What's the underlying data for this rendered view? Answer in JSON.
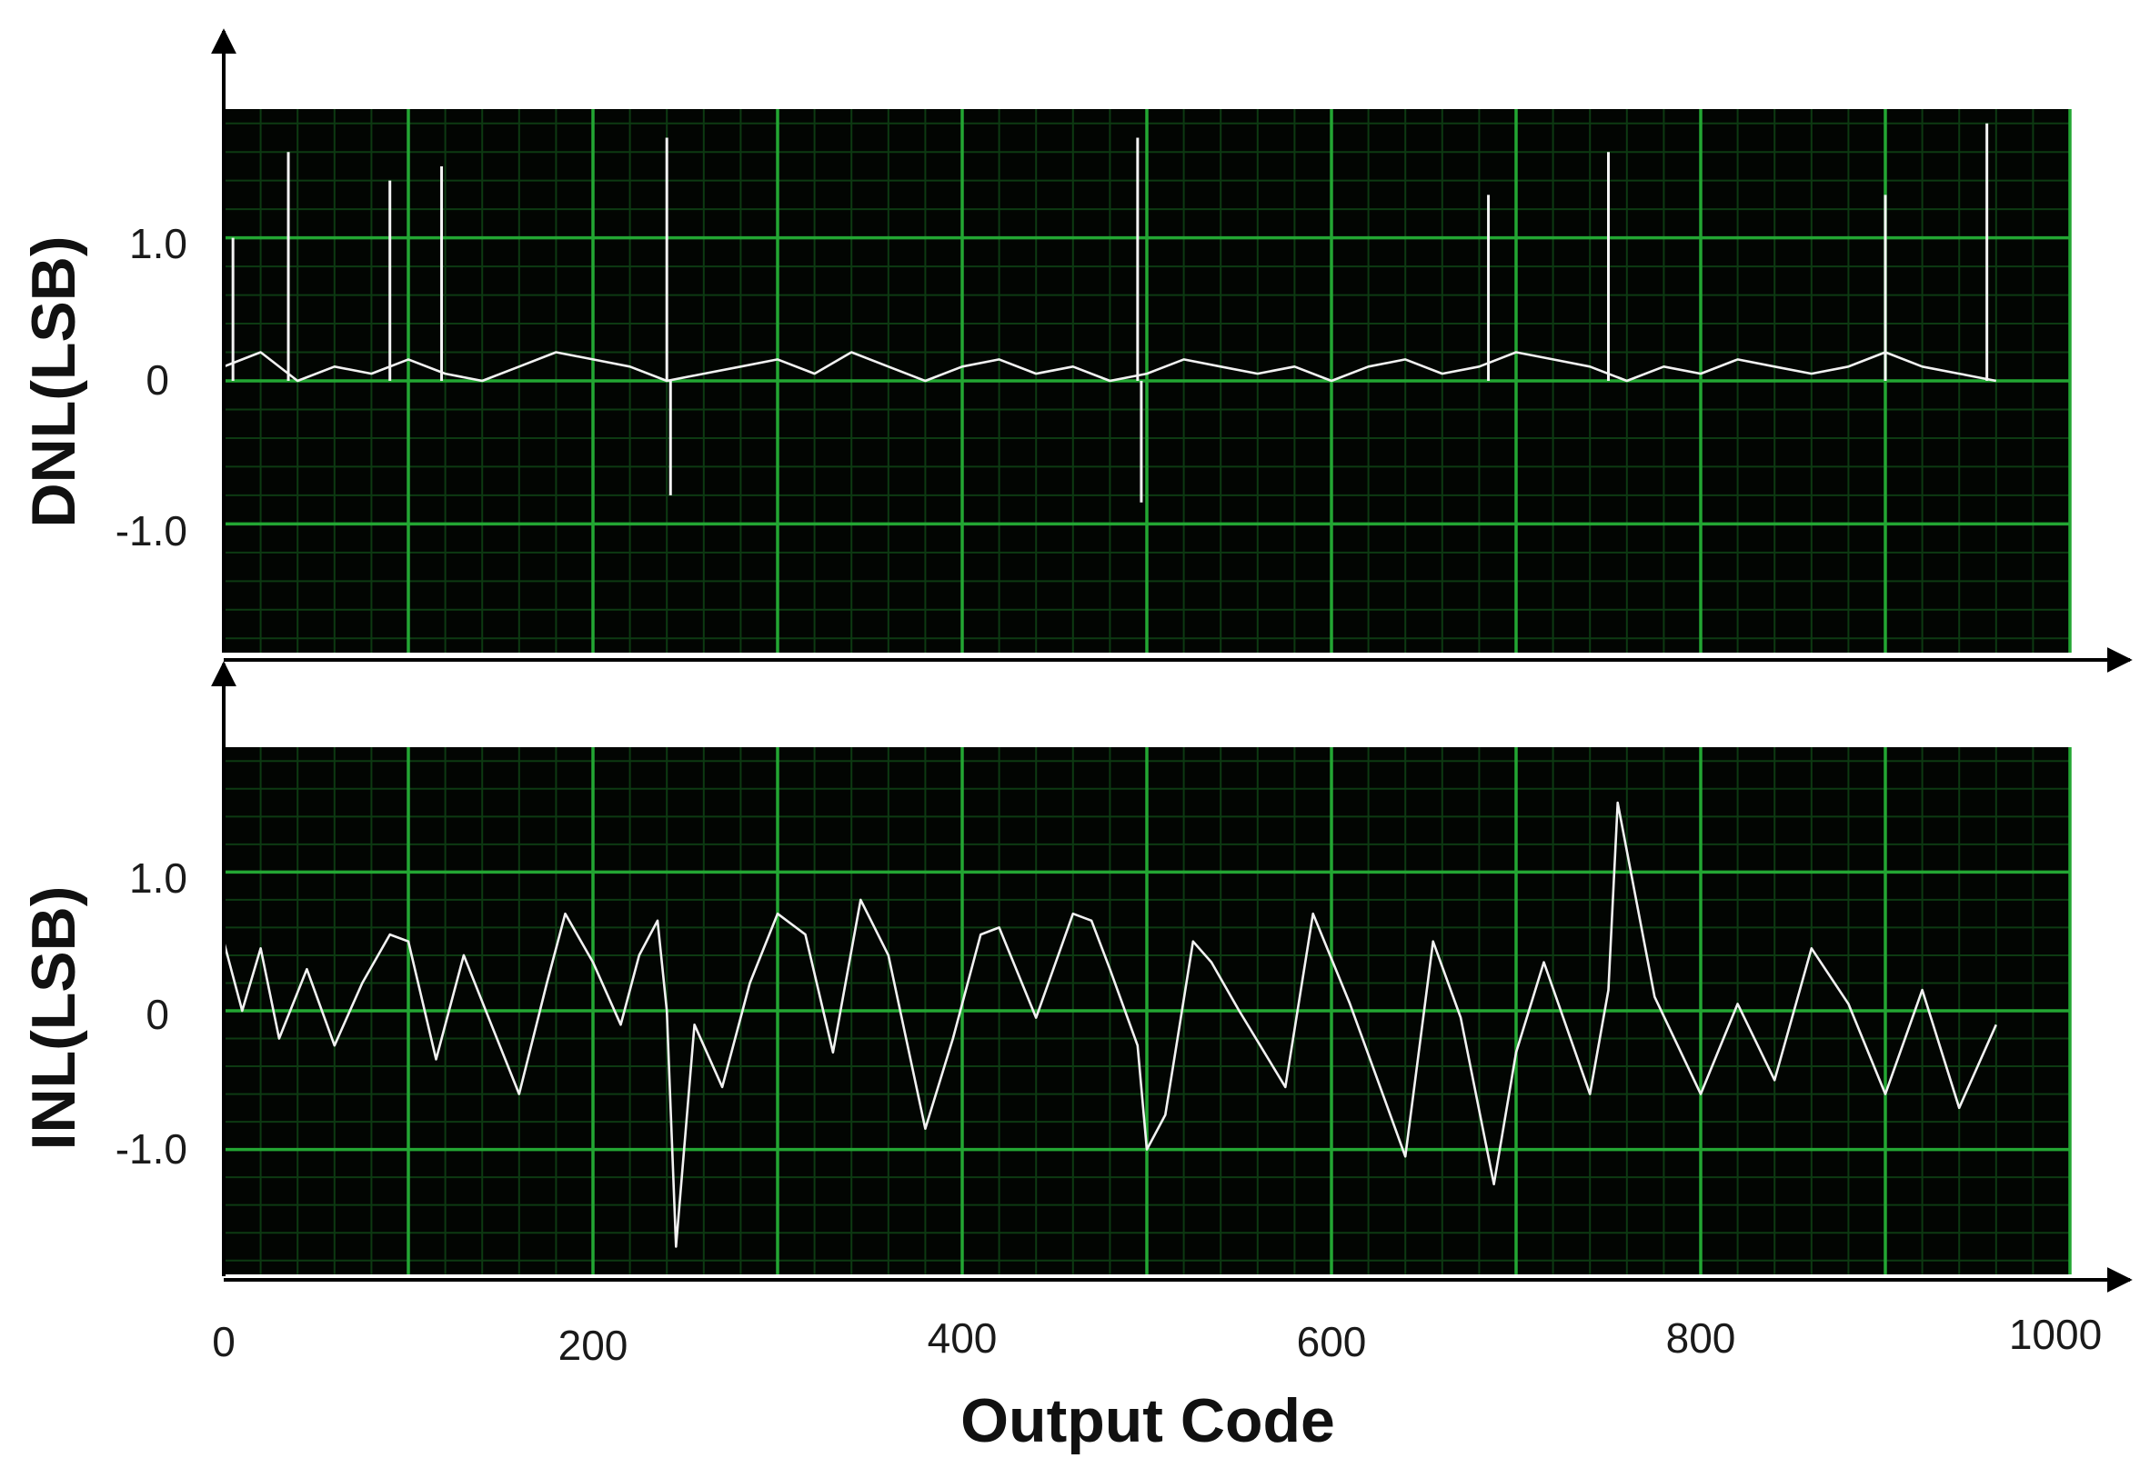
{
  "chart_data": [
    {
      "type": "line",
      "ylabel": "DNL(LSB)",
      "xlabel": "",
      "xlim": [
        0,
        1000
      ],
      "ylim": [
        -1.9,
        1.9
      ],
      "yticks": [
        -1.0,
        0,
        1.0
      ],
      "ytick_labels": [
        "-1.0",
        "0",
        "1.0"
      ],
      "grid": true,
      "colors": {
        "background": "#020502",
        "grid": "#23a633",
        "trace": "#f2f2f2"
      },
      "series": [
        {
          "x": [
            0,
            20,
            40,
            60,
            80,
            100,
            120,
            140,
            160,
            180,
            200,
            220,
            240,
            260,
            280,
            300,
            320,
            340,
            360,
            380,
            400,
            420,
            440,
            460,
            480,
            500,
            520,
            540,
            560,
            580,
            600,
            620,
            640,
            660,
            680,
            700,
            720,
            740,
            760,
            780,
            800,
            820,
            840,
            860,
            880,
            900,
            920,
            940,
            960
          ],
          "y": [
            0.1,
            0.2,
            0.0,
            0.1,
            0.05,
            0.15,
            0.05,
            0.0,
            0.1,
            0.2,
            0.15,
            0.1,
            0.0,
            0.05,
            0.1,
            0.15,
            0.05,
            0.2,
            0.1,
            0.0,
            0.1,
            0.15,
            0.05,
            0.1,
            0.0,
            0.05,
            0.15,
            0.1,
            0.05,
            0.1,
            0.0,
            0.1,
            0.15,
            0.05,
            0.1,
            0.2,
            0.15,
            0.1,
            0.0,
            0.1,
            0.05,
            0.15,
            0.1,
            0.05,
            0.1,
            0.2,
            0.1,
            0.05,
            0.0
          ],
          "spikes": [
            {
              "x": 5,
              "y": 1.0
            },
            {
              "x": 35,
              "y": 1.6
            },
            {
              "x": 90,
              "y": 1.4
            },
            {
              "x": 118,
              "y": 1.5
            },
            {
              "x": 240,
              "y": 1.7
            },
            {
              "x": 242,
              "y": -0.8
            },
            {
              "x": 495,
              "y": 1.7
            },
            {
              "x": 497,
              "y": -0.85
            },
            {
              "x": 685,
              "y": 1.3
            },
            {
              "x": 750,
              "y": 1.6
            },
            {
              "x": 900,
              "y": 1.3
            },
            {
              "x": 955,
              "y": 1.8
            }
          ]
        }
      ]
    },
    {
      "type": "line",
      "ylabel": "INL(LSB)",
      "xlabel": "Output Code",
      "xlim": [
        0,
        1000
      ],
      "ylim": [
        -1.9,
        1.9
      ],
      "xticks": [
        0,
        200,
        400,
        600,
        800,
        1000
      ],
      "xtick_labels": [
        "0",
        "200",
        "400",
        "600",
        "800",
        "1000"
      ],
      "yticks": [
        -1.0,
        0,
        1.0
      ],
      "ytick_labels": [
        "-1.0",
        "0",
        "1.0"
      ],
      "grid": true,
      "colors": {
        "background": "#020502",
        "grid": "#23a633",
        "trace": "#f2f2f2"
      },
      "series": [
        {
          "x": [
            0,
            10,
            20,
            30,
            45,
            60,
            75,
            90,
            100,
            115,
            130,
            145,
            160,
            175,
            185,
            200,
            215,
            225,
            235,
            240,
            245,
            255,
            270,
            285,
            300,
            315,
            330,
            345,
            360,
            380,
            395,
            410,
            420,
            440,
            460,
            470,
            480,
            495,
            500,
            510,
            525,
            535,
            550,
            575,
            590,
            610,
            625,
            640,
            655,
            670,
            688,
            700,
            715,
            740,
            750,
            755,
            775,
            800,
            820,
            840,
            860,
            880,
            900,
            920,
            940,
            960
          ],
          "y": [
            0.5,
            0.0,
            0.45,
            -0.2,
            0.3,
            -0.25,
            0.2,
            0.55,
            0.5,
            -0.35,
            0.4,
            -0.1,
            -0.6,
            0.2,
            0.7,
            0.35,
            -0.1,
            0.4,
            0.65,
            0.0,
            -1.7,
            -0.1,
            -0.55,
            0.2,
            0.7,
            0.55,
            -0.3,
            0.8,
            0.4,
            -0.85,
            -0.2,
            0.55,
            0.6,
            -0.05,
            0.7,
            0.65,
            0.3,
            -0.25,
            -1.0,
            -0.75,
            0.5,
            0.35,
            0.0,
            -0.55,
            0.7,
            0.05,
            -0.5,
            -1.05,
            0.5,
            -0.05,
            -1.25,
            -0.3,
            0.35,
            -0.6,
            0.15,
            1.5,
            0.1,
            -0.6,
            0.05,
            -0.5,
            0.45,
            0.05,
            -0.6,
            0.15,
            -0.7,
            -0.1
          ]
        }
      ]
    }
  ]
}
